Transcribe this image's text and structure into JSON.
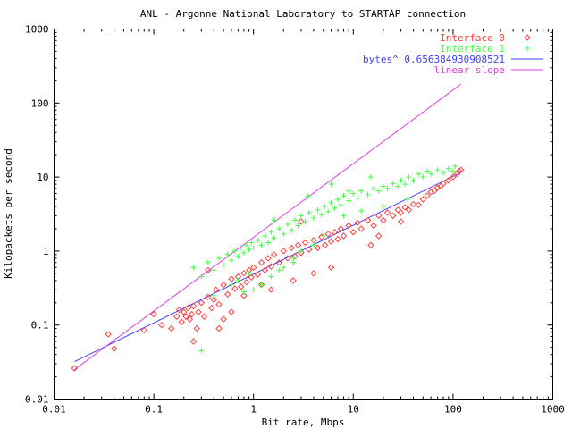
{
  "chart_data": {
    "type": "scatter",
    "title": "ANL - Argonne National Laboratory to STARTAP connection",
    "xlabel": "Bit rate, Mbps",
    "ylabel": "Kilopackets per second",
    "xscale": "log",
    "yscale": "log",
    "xlim": [
      0.01,
      1000
    ],
    "ylim": [
      0.01,
      1000
    ],
    "x_ticks": [
      "0.01",
      "0.1",
      "1",
      "10",
      "100",
      "1000"
    ],
    "y_ticks": [
      "0.01",
      "0.1",
      "1",
      "10",
      "100",
      "1000"
    ],
    "legend_position": "top-right",
    "series": [
      {
        "name": "Interface 0",
        "marker": "diamond",
        "color": "#ff4040",
        "points": [
          [
            0.016,
            0.026
          ],
          [
            0.035,
            0.075
          ],
          [
            0.04,
            0.048
          ],
          [
            0.08,
            0.085
          ],
          [
            0.1,
            0.14
          ],
          [
            0.12,
            0.1
          ],
          [
            0.15,
            0.09
          ],
          [
            0.17,
            0.13
          ],
          [
            0.18,
            0.16
          ],
          [
            0.19,
            0.11
          ],
          [
            0.2,
            0.15
          ],
          [
            0.21,
            0.13
          ],
          [
            0.22,
            0.17
          ],
          [
            0.23,
            0.12
          ],
          [
            0.24,
            0.14
          ],
          [
            0.25,
            0.18
          ],
          [
            0.27,
            0.09
          ],
          [
            0.28,
            0.15
          ],
          [
            0.3,
            0.2
          ],
          [
            0.32,
            0.13
          ],
          [
            0.35,
            0.24
          ],
          [
            0.38,
            0.17
          ],
          [
            0.4,
            0.22
          ],
          [
            0.42,
            0.3
          ],
          [
            0.45,
            0.19
          ],
          [
            0.5,
            0.35
          ],
          [
            0.55,
            0.26
          ],
          [
            0.6,
            0.42
          ],
          [
            0.65,
            0.31
          ],
          [
            0.7,
            0.45
          ],
          [
            0.75,
            0.33
          ],
          [
            0.8,
            0.5
          ],
          [
            0.85,
            0.38
          ],
          [
            0.9,
            0.55
          ],
          [
            0.95,
            0.44
          ],
          [
            1.0,
            0.6
          ],
          [
            1.1,
            0.48
          ],
          [
            1.2,
            0.7
          ],
          [
            1.3,
            0.55
          ],
          [
            1.4,
            0.8
          ],
          [
            1.5,
            0.62
          ],
          [
            1.6,
            0.9
          ],
          [
            1.8,
            0.7
          ],
          [
            2.0,
            1.0
          ],
          [
            2.2,
            0.8
          ],
          [
            2.4,
            1.1
          ],
          [
            2.6,
            0.85
          ],
          [
            2.8,
            1.2
          ],
          [
            3.0,
            0.95
          ],
          [
            3.3,
            1.3
          ],
          [
            3.6,
            1.05
          ],
          [
            4.0,
            1.4
          ],
          [
            4.4,
            1.1
          ],
          [
            4.8,
            1.55
          ],
          [
            5.2,
            1.2
          ],
          [
            5.6,
            1.7
          ],
          [
            6.0,
            1.35
          ],
          [
            6.5,
            1.8
          ],
          [
            7.0,
            1.45
          ],
          [
            7.5,
            2.0
          ],
          [
            8.0,
            1.6
          ],
          [
            9.0,
            2.2
          ],
          [
            10,
            1.8
          ],
          [
            11,
            2.4
          ],
          [
            12,
            2.0
          ],
          [
            14,
            2.6
          ],
          [
            16,
            2.2
          ],
          [
            18,
            3.0
          ],
          [
            20,
            2.6
          ],
          [
            22,
            3.3
          ],
          [
            25,
            3.0
          ],
          [
            28,
            3.6
          ],
          [
            30,
            3.3
          ],
          [
            33,
            3.9
          ],
          [
            36,
            3.6
          ],
          [
            40,
            4.3
          ],
          [
            45,
            4.2
          ],
          [
            50,
            5.0
          ],
          [
            55,
            5.6
          ],
          [
            60,
            6.3
          ],
          [
            65,
            6.5
          ],
          [
            70,
            7.2
          ],
          [
            75,
            7.5
          ],
          [
            80,
            8.2
          ],
          [
            90,
            9.0
          ],
          [
            100,
            10.0
          ],
          [
            110,
            11.0
          ],
          [
            115,
            12.0
          ],
          [
            120,
            12.5
          ],
          [
            0.6,
            0.15
          ],
          [
            1.5,
            0.3
          ],
          [
            2.5,
            0.4
          ],
          [
            3.0,
            2.5
          ],
          [
            6.0,
            0.6
          ],
          [
            15,
            1.2
          ],
          [
            0.35,
            0.55
          ],
          [
            0.8,
            0.25
          ],
          [
            1.2,
            0.35
          ],
          [
            0.25,
            0.06
          ],
          [
            0.5,
            0.12
          ],
          [
            18,
            1.6
          ],
          [
            30,
            2.5
          ],
          [
            0.45,
            0.09
          ],
          [
            4.0,
            0.5
          ]
        ]
      },
      {
        "name": "Interface 1",
        "marker": "plus",
        "color": "#40ff40",
        "points": [
          [
            0.3,
            0.045
          ],
          [
            0.25,
            0.6
          ],
          [
            0.3,
            0.45
          ],
          [
            0.35,
            0.7
          ],
          [
            0.4,
            0.55
          ],
          [
            0.45,
            0.8
          ],
          [
            0.5,
            0.65
          ],
          [
            0.55,
            0.9
          ],
          [
            0.6,
            0.75
          ],
          [
            0.65,
            1.0
          ],
          [
            0.7,
            0.85
          ],
          [
            0.75,
            1.1
          ],
          [
            0.8,
            0.95
          ],
          [
            0.85,
            1.2
          ],
          [
            0.9,
            1.05
          ],
          [
            0.95,
            1.3
          ],
          [
            1.0,
            1.1
          ],
          [
            1.1,
            1.4
          ],
          [
            1.2,
            1.2
          ],
          [
            1.3,
            1.6
          ],
          [
            1.4,
            1.3
          ],
          [
            1.5,
            1.8
          ],
          [
            1.6,
            1.5
          ],
          [
            1.8,
            2.0
          ],
          [
            2.0,
            1.7
          ],
          [
            2.2,
            2.3
          ],
          [
            2.4,
            1.9
          ],
          [
            2.6,
            2.6
          ],
          [
            2.8,
            2.2
          ],
          [
            3.0,
            3.0
          ],
          [
            3.3,
            2.5
          ],
          [
            3.6,
            3.3
          ],
          [
            4.0,
            2.8
          ],
          [
            4.4,
            3.6
          ],
          [
            4.8,
            3.1
          ],
          [
            5.2,
            4.0
          ],
          [
            5.6,
            3.4
          ],
          [
            6.0,
            4.5
          ],
          [
            6.5,
            3.8
          ],
          [
            7.0,
            5.0
          ],
          [
            7.5,
            4.2
          ],
          [
            8.0,
            5.6
          ],
          [
            9.0,
            4.8
          ],
          [
            10,
            6.0
          ],
          [
            11,
            5.2
          ],
          [
            12,
            6.5
          ],
          [
            14,
            5.8
          ],
          [
            16,
            7.0
          ],
          [
            18,
            6.5
          ],
          [
            20,
            7.5
          ],
          [
            22,
            7.0
          ],
          [
            25,
            8.2
          ],
          [
            28,
            7.5
          ],
          [
            30,
            9.0
          ],
          [
            33,
            8.0
          ],
          [
            36,
            10.0
          ],
          [
            40,
            9.0
          ],
          [
            45,
            11.0
          ],
          [
            50,
            10.0
          ],
          [
            55,
            12.0
          ],
          [
            60,
            11.0
          ],
          [
            70,
            12.5
          ],
          [
            80,
            11.5
          ],
          [
            90,
            13.0
          ],
          [
            100,
            12.0
          ],
          [
            105,
            14.0
          ],
          [
            1.0,
            0.3
          ],
          [
            1.5,
            0.45
          ],
          [
            2.0,
            0.6
          ],
          [
            0.8,
            0.28
          ],
          [
            1.2,
            0.35
          ],
          [
            2.5,
            0.8
          ],
          [
            3.0,
            1.0
          ],
          [
            4.0,
            1.2
          ],
          [
            0.6,
            0.35
          ],
          [
            0.9,
            0.5
          ],
          [
            3.5,
            5.5
          ],
          [
            6.0,
            8.0
          ],
          [
            1.6,
            2.6
          ],
          [
            8.0,
            3.0
          ],
          [
            12,
            3.5
          ],
          [
            20,
            4.0
          ],
          [
            35,
            5.0
          ],
          [
            0.4,
            0.25
          ],
          [
            2.5,
            0.7
          ],
          [
            5.0,
            1.6
          ],
          [
            1.8,
            0.55
          ],
          [
            0.7,
            0.4
          ],
          [
            15,
            10.0
          ],
          [
            9,
            6.5
          ]
        ]
      }
    ],
    "fit_lines": [
      {
        "name": "bytes^ 0.656384930908521",
        "color": "#4040ff",
        "from": [
          0.016,
          0.032
        ],
        "to": [
          120,
          11.5
        ]
      },
      {
        "name": "linear slope",
        "color": "#e040e0",
        "from": [
          0.016,
          0.025
        ],
        "to": [
          120,
          180
        ]
      }
    ]
  }
}
